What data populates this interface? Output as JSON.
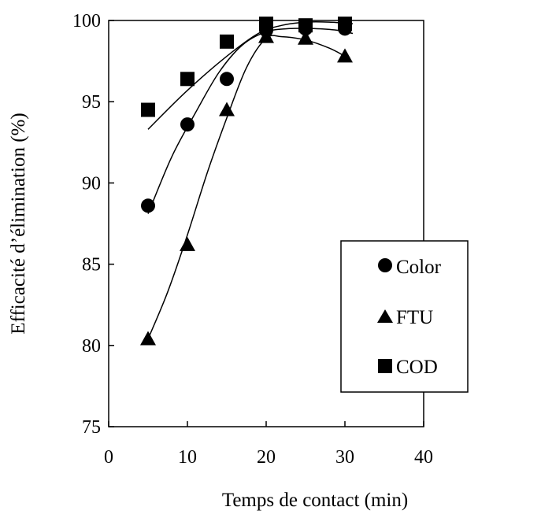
{
  "chart_data": {
    "type": "scatter",
    "xlabel": "Temps de contact (min)",
    "ylabel": "Efficacité d’élimination (%)",
    "xlim": [
      0,
      40
    ],
    "ylim": [
      75,
      100
    ],
    "xticks": [
      0,
      10,
      20,
      30,
      40
    ],
    "yticks": [
      75,
      80,
      85,
      90,
      95,
      100
    ],
    "xtick_labels": [
      "0",
      "10",
      "20",
      "30",
      "40"
    ],
    "ytick_labels": [
      "75",
      "80",
      "85",
      "90",
      "95",
      "100"
    ],
    "grid": false,
    "legend_position": "bottom-right",
    "series": [
      {
        "name": "Color",
        "marker": "circle",
        "color": "#000000",
        "x": [
          5,
          10,
          15,
          20,
          25,
          30
        ],
        "y": [
          88.6,
          93.6,
          96.4,
          99.4,
          99.5,
          99.5
        ],
        "trend": {
          "x": [
            5,
            8,
            11,
            14,
            17,
            20,
            23,
            26,
            29,
            31
          ],
          "y": [
            88.1,
            91.6,
            94.3,
            96.8,
            98.5,
            99.3,
            99.5,
            99.5,
            99.4,
            99.2
          ]
        }
      },
      {
        "name": "FTU",
        "marker": "triangle",
        "color": "#000000",
        "x": [
          5,
          10,
          15,
          20,
          25,
          30
        ],
        "y": [
          80.4,
          86.2,
          94.5,
          99.0,
          98.9,
          97.8
        ],
        "trend": {
          "x": [
            5,
            7.5,
            10,
            12.5,
            15,
            17.5,
            20,
            22,
            25,
            28,
            30
          ],
          "y": [
            80.4,
            83.3,
            86.8,
            90.6,
            94.0,
            97.1,
            98.9,
            99.0,
            98.8,
            98.3,
            97.8
          ]
        }
      },
      {
        "name": "COD",
        "marker": "square",
        "color": "#000000",
        "x": [
          5,
          10,
          15,
          20,
          25,
          30
        ],
        "y": [
          94.5,
          96.4,
          98.7,
          99.8,
          99.7,
          99.8
        ],
        "trend": {
          "x": [
            5,
            10,
            15,
            19,
            22,
            25,
            28,
            31
          ],
          "y": [
            93.3,
            95.7,
            97.8,
            99.2,
            99.7,
            99.9,
            99.9,
            99.8
          ]
        }
      }
    ]
  }
}
